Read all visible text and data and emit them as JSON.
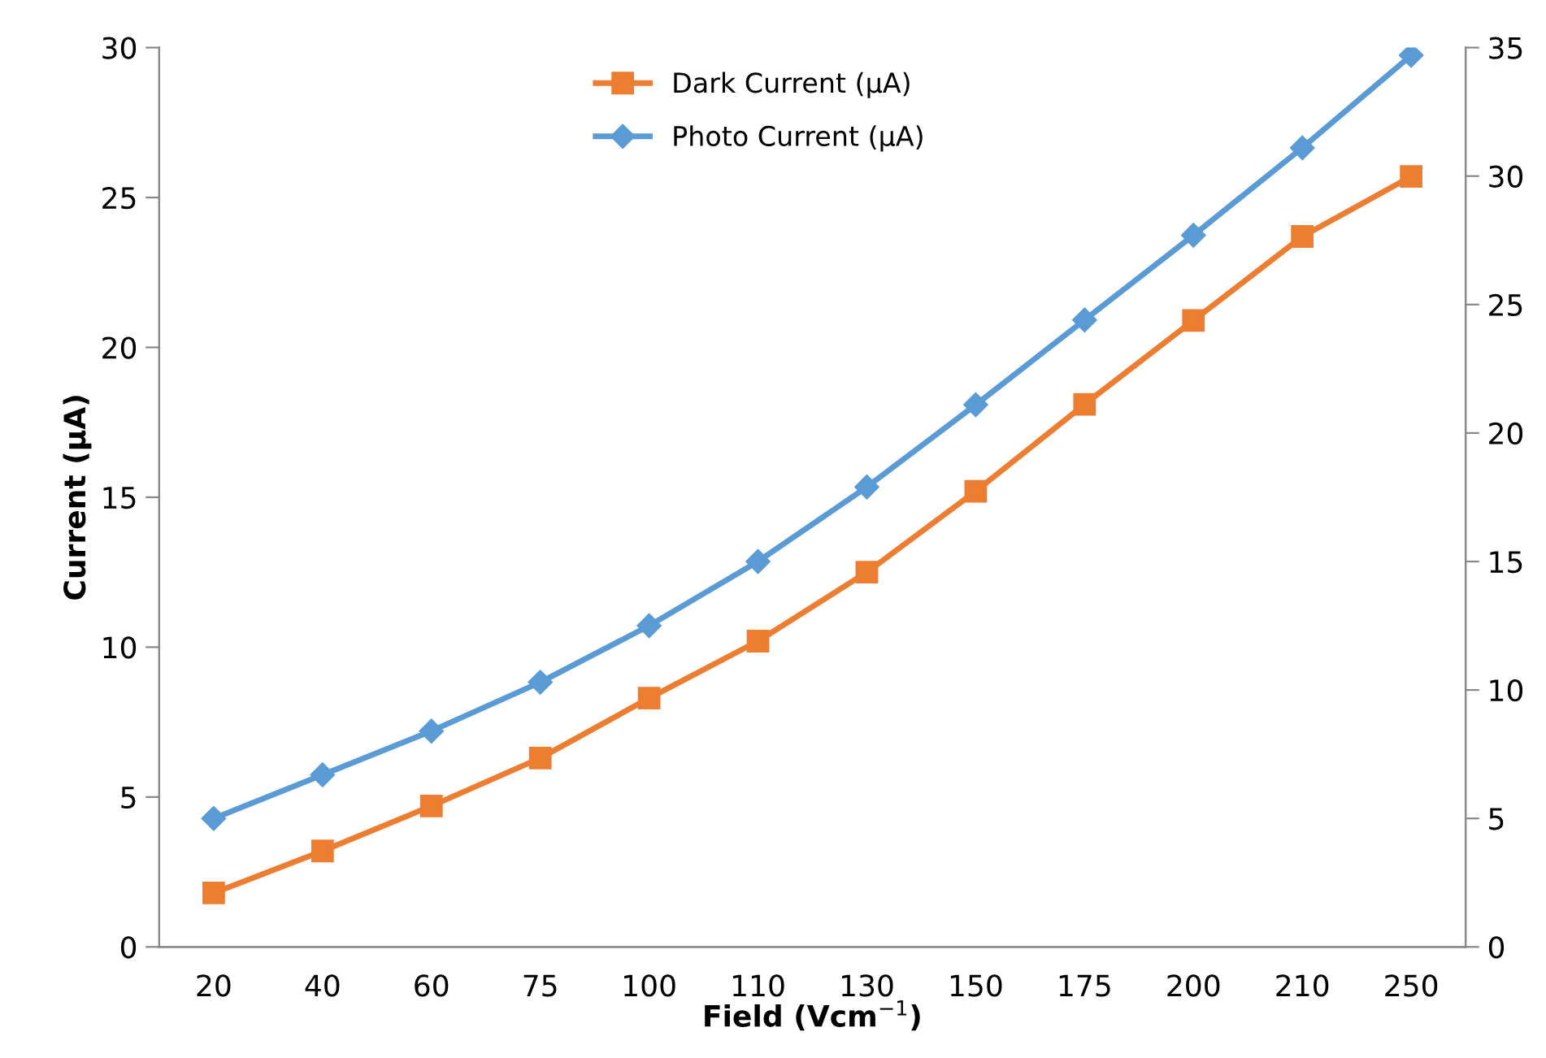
{
  "chart_data": {
    "type": "line",
    "xlabel": "Field (Vcm$^{−1}$)",
    "ylabel": "Current (µA)",
    "categories": [
      "20",
      "40",
      "60",
      "75",
      "100",
      "110",
      "130",
      "150",
      "175",
      "200",
      "210",
      "250"
    ],
    "series": [
      {
        "name": "Dark Current (µA)",
        "color": "#ed7d31",
        "marker": "square",
        "values": [
          1.8,
          3.2,
          4.7,
          6.3,
          8.3,
          10.2,
          12.5,
          15.2,
          18.1,
          20.9,
          23.7,
          25.7
        ]
      },
      {
        "name": "Photo Current (µA)",
        "color": "#5b9bd5",
        "marker": "diamond",
        "axis": "y2",
        "values": [
          5.0,
          6.7,
          8.4,
          10.3,
          12.5,
          15.0,
          17.9,
          21.1,
          24.4,
          27.7,
          31.1,
          34.7
        ]
      }
    ],
    "ylim": [
      0,
      30
    ],
    "yticks": [
      0,
      5,
      10,
      15,
      20,
      25,
      30
    ],
    "y2lim": [
      0,
      35
    ],
    "y2ticks": [
      0,
      5,
      10,
      15,
      20,
      25,
      30,
      35
    ],
    "grid": false,
    "legend": "top"
  }
}
